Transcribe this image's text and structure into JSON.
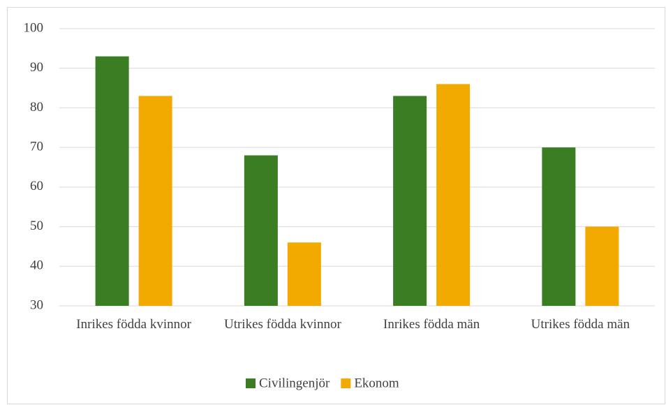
{
  "chart_data": {
    "type": "bar",
    "categories": [
      "Inrikes födda kvinnor",
      "Utrikes födda kvinnor",
      "Inrikes födda män",
      "Utrikes födda män"
    ],
    "series": [
      {
        "name": "Civilingenjör",
        "color": "#3a7d22",
        "values": [
          93,
          68,
          83,
          70
        ]
      },
      {
        "name": "Ekonom",
        "color": "#f2a900",
        "values": [
          83,
          46,
          86,
          50
        ]
      }
    ],
    "ylim": [
      30,
      100
    ],
    "yticks": [
      30,
      40,
      50,
      60,
      70,
      80,
      90,
      100
    ],
    "grid": true,
    "legend": "bottom"
  }
}
